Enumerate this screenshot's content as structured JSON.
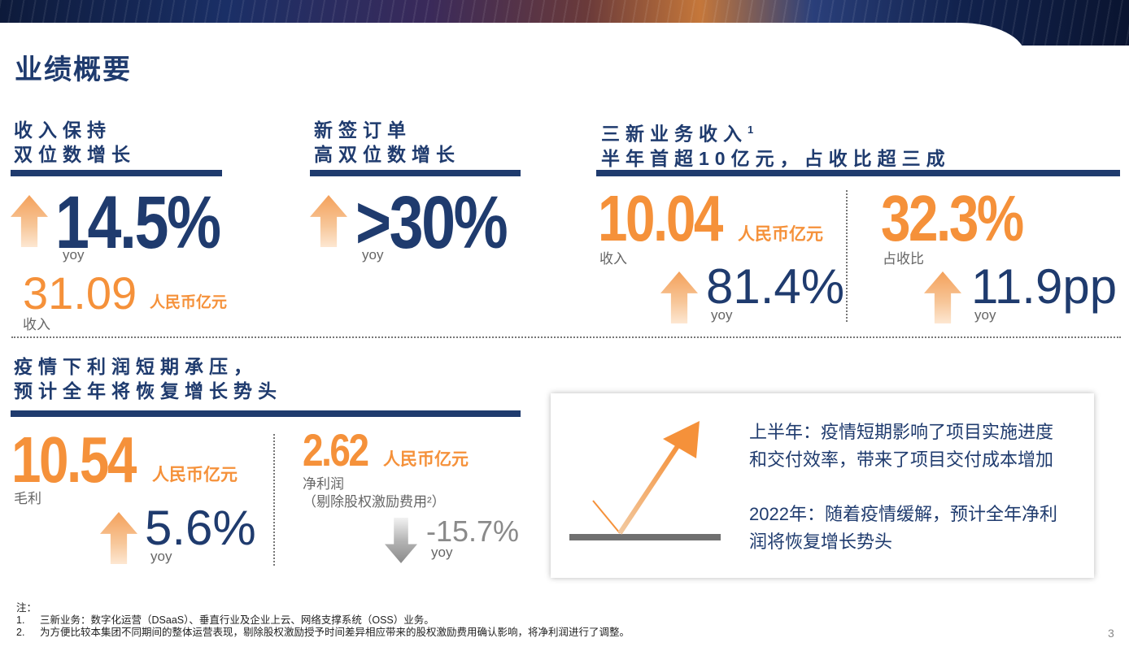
{
  "title": "业绩概要",
  "sections": {
    "revenue": {
      "heading_line1": "收入保持",
      "heading_line2": "双位数增长",
      "growth": "14.5%",
      "growth_label": "yoy",
      "amount": "31.09",
      "unit": "人民币亿元",
      "amount_label": "收入"
    },
    "orders": {
      "heading_line1": "新签订单",
      "heading_line2": "高双位数增长",
      "growth": ">30%",
      "growth_label": "yoy"
    },
    "new_business": {
      "heading_line1": "三新业务收入",
      "heading_sup": "1",
      "heading_line2": "半年首超10亿元，占收比超三成",
      "amount": "10.04",
      "unit": "人民币亿元",
      "amount_label": "收入",
      "amount_growth": "81.4%",
      "amount_growth_label": "yoy",
      "share": "32.3%",
      "share_label": "占收比",
      "share_growth": "11.9pp",
      "share_growth_label": "yoy"
    },
    "profit": {
      "heading_line1": "疫情下利润短期承压，",
      "heading_line2": "预计全年将恢复增长势头",
      "gross": "10.54",
      "gross_unit": "人民币亿元",
      "gross_label": "毛利",
      "gross_growth": "5.6%",
      "gross_growth_label": "yoy",
      "net": "2.62",
      "net_unit": "人民币亿元",
      "net_label": "净利润",
      "net_sublabel": "（剔除股权激励费用²）",
      "net_growth": "-15.7%",
      "net_growth_label": "yoy"
    }
  },
  "outlook": {
    "line1": "上半年：疫情短期影响了项目实施进度",
    "line2": "和交付效率，带来了项目交付成本增加",
    "line3": "2022年：随着疫情缓解，预计全年净利",
    "line4": "润将恢复增长势头"
  },
  "notes": {
    "title": "注：",
    "items": [
      {
        "num": "1.",
        "text": "三新业务：数字化运营（DSaaS）、垂直行业及企业上云、网络支撑系统（OSS）业务。"
      },
      {
        "num": "2.",
        "text": "为方便比较本集团不同期间的整体运营表现，剔除股权激励授予时间差异相应带来的股权激励费用确认影响，将净利润进行了调整。"
      }
    ]
  },
  "page_number": "3",
  "colors": {
    "navy": "#1f3b6e",
    "orange": "#f5913a",
    "gray": "#8a8a8a"
  }
}
